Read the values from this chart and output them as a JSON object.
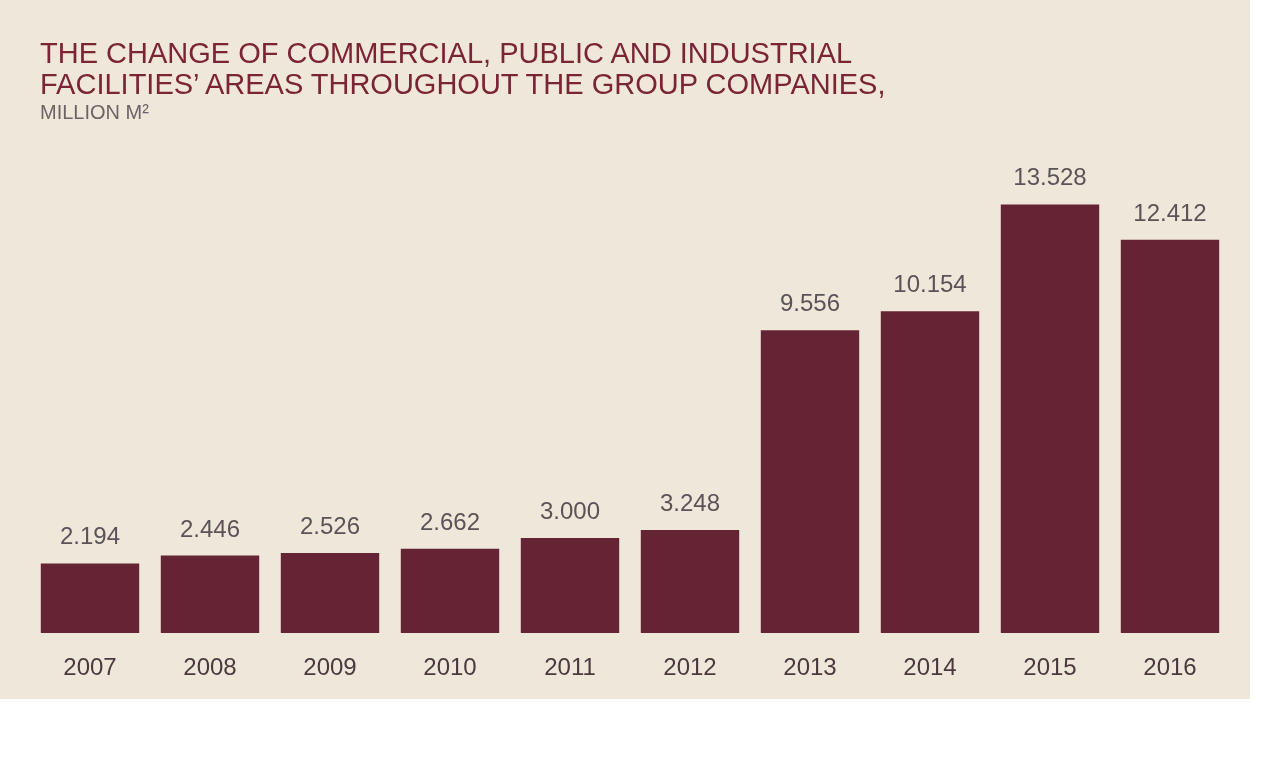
{
  "chart_data": {
    "type": "bar",
    "title": [
      "THE CHANGE OF COMMERCIAL, PUBLIC AND INDUSTRIAL",
      "FACILITIES’ AREAS THROUGHOUT THE GROUP COMPANIES,"
    ],
    "subtitle": "MILLION M²",
    "categories": [
      "2007",
      "2008",
      "2009",
      "2010",
      "2011",
      "2012",
      "2013",
      "2014",
      "2015",
      "2016"
    ],
    "values": [
      2.194,
      2.446,
      2.526,
      2.662,
      3.0,
      3.248,
      9.556,
      10.154,
      13.528,
      12.412
    ],
    "value_labels": [
      "2.194",
      "2.446",
      "2.526",
      "2.662",
      "3.000",
      "3.248",
      "9.556",
      "10.154",
      "13.528",
      "12.412"
    ],
    "color": "#652434",
    "tick_labels": "x",
    "grid": false
  }
}
